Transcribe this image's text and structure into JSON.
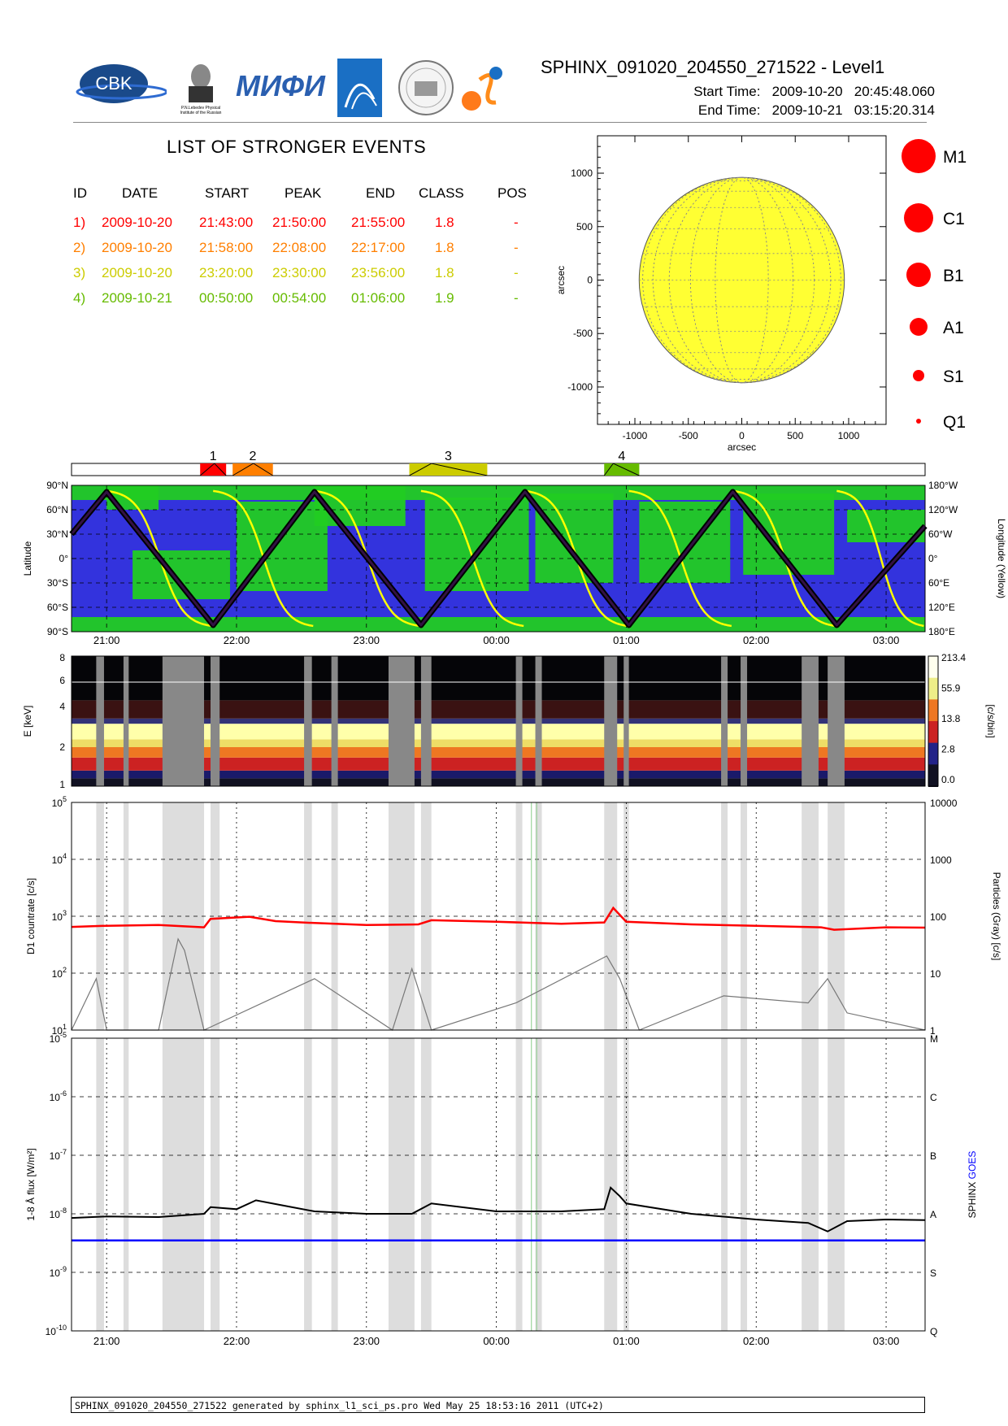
{
  "header": {
    "title": "SPHINX_091020_204550_271522 - Level1",
    "start_label": "Start Time:",
    "start_value": "2009-10-20   20:45:48.060",
    "end_label": "End Time:",
    "end_value": "2009-10-21   03:15:20.314",
    "logos": [
      "CBK PAN logo",
      "P.N. Lebedev Physical Institute logo",
      "MIFI logo",
      "instrument logo",
      "institute seal logo",
      "sun logo"
    ],
    "logo_text": {
      "cbk": "CBK",
      "lebedev": "P.N.Lebedev Physical Institute of the Russian Academy of Science",
      "mifi": "МИФИ"
    }
  },
  "events": {
    "title": "LIST OF STRONGER EVENTS",
    "columns": [
      "ID",
      "DATE",
      "START",
      "PEAK",
      "END",
      "CLASS",
      "POS"
    ],
    "rows": [
      {
        "id": "1)",
        "date": "2009-10-20",
        "start": "21:43:00",
        "peak": "21:50:00",
        "end": "21:55:00",
        "class": "1.8",
        "pos": "-",
        "color": "#ff0000"
      },
      {
        "id": "2)",
        "date": "2009-10-20",
        "start": "21:58:00",
        "peak": "22:08:00",
        "end": "22:17:00",
        "class": "1.8",
        "pos": "-",
        "color": "#ff7f00"
      },
      {
        "id": "3)",
        "date": "2009-10-20",
        "start": "23:20:00",
        "peak": "23:30:00",
        "end": "23:56:00",
        "class": "1.8",
        "pos": "-",
        "color": "#cccc00"
      },
      {
        "id": "4)",
        "date": "2009-10-21",
        "start": "00:50:00",
        "peak": "00:54:00",
        "end": "01:06:00",
        "class": "1.9",
        "pos": "-",
        "color": "#66bb00"
      }
    ]
  },
  "chart_data": [
    {
      "type": "scatter",
      "title": "",
      "xlabel": "arcsec",
      "ylabel": "arcsec",
      "xlim": [
        -1350,
        1350
      ],
      "ylim": [
        -1350,
        1350
      ],
      "xticks": [
        "-1000",
        "-500",
        "0",
        "500",
        "1000"
      ],
      "yticks": [
        "1000",
        "500",
        "0",
        "-500",
        "-1000"
      ],
      "disk_radius_arcsec": 960,
      "disk_color": "#ffff33",
      "legend": [
        "M1",
        "C1",
        "B1",
        "A1",
        "S1",
        "Q1"
      ],
      "points": []
    },
    {
      "type": "bar",
      "title": "",
      "xrange_hours": [
        20.73,
        27.3
      ],
      "events": [
        {
          "label": "1",
          "start": 21.72,
          "peak": 21.83,
          "end": 21.92,
          "color": "#ff0000"
        },
        {
          "label": "2",
          "start": 21.97,
          "peak": 22.13,
          "end": 22.28,
          "color": "#ff7f00"
        },
        {
          "label": "3",
          "start": 23.33,
          "peak": 23.5,
          "end": 23.93,
          "color": "#cccc00"
        },
        {
          "label": "4",
          "start": 24.83,
          "peak": 24.9,
          "end": 25.1,
          "color": "#66bb00"
        }
      ]
    },
    {
      "type": "line",
      "title": "",
      "ylabel": "Latitude",
      "ylabel_right": "Longitude (Yellow)",
      "yticks_left": [
        "90°N",
        "60°N",
        "30°N",
        "0°",
        "30°S",
        "60°S",
        "90°S"
      ],
      "yticks_right": [
        "180°W",
        "120°W",
        "60°W",
        "0°",
        "60°E",
        "120°E",
        "180°E"
      ],
      "xticks": [
        "21:00",
        "22:00",
        "23:00",
        "00:00",
        "01:00",
        "02:00",
        "03:00"
      ],
      "background_color": "#3333dd",
      "region_color": "#22cc22",
      "latitude_series": {
        "name": "",
        "x": [
          20.73,
          21.0,
          21.82,
          22.6,
          23.42,
          24.22,
          25.02,
          25.82,
          26.62,
          27.3
        ],
        "y": [
          30,
          82,
          -82,
          82,
          -82,
          82,
          -82,
          82,
          -82,
          40
        ]
      },
      "longitude_series": {
        "name": "",
        "color": "#ffff00",
        "crossings_hours": [
          21.0,
          21.82,
          22.6,
          23.42,
          24.22,
          25.02,
          25.82,
          26.62
        ]
      }
    },
    {
      "type": "heatmap",
      "title": "",
      "ylabel": "E [keV]",
      "ylabel_right": "[c/s/bin]",
      "yticks": [
        "8",
        "6",
        "4",
        "2",
        "1"
      ],
      "colorbar_ticks": [
        "213.4",
        "55.9",
        "13.8",
        "2.8",
        "0.0"
      ],
      "gaps_hours": [
        [
          20.92,
          20.98
        ],
        [
          21.13,
          21.17
        ],
        [
          21.43,
          21.75
        ],
        [
          21.8,
          21.87
        ],
        [
          22.52,
          22.58
        ],
        [
          22.73,
          22.78
        ],
        [
          23.17,
          23.37
        ],
        [
          23.42,
          23.5
        ],
        [
          24.15,
          24.2
        ],
        [
          24.3,
          24.35
        ],
        [
          24.83,
          24.93
        ],
        [
          24.98,
          25.02
        ],
        [
          25.73,
          25.78
        ],
        [
          25.88,
          25.93
        ],
        [
          26.35,
          26.48
        ],
        [
          26.55,
          26.68
        ]
      ]
    },
    {
      "type": "line",
      "title": "",
      "ylabel": "D1 countrate [c/s]",
      "ylabel_right": "Particles (Gray) [c/s]",
      "yscale": "log",
      "ylim": [
        10,
        100000
      ],
      "ylim_right": [
        1,
        10000
      ],
      "yticks_left": [
        "10^5",
        "10^4",
        "10^3",
        "10^2",
        "10^1"
      ],
      "yticks_right": [
        "10000",
        "1000",
        "100",
        "10",
        "1"
      ],
      "series": [
        {
          "name": "",
          "color": "#ff0000",
          "x": [
            20.73,
            21.0,
            21.4,
            21.75,
            21.8,
            22.1,
            22.3,
            22.6,
            23.0,
            23.4,
            23.5,
            24.0,
            24.5,
            24.83,
            24.9,
            25.0,
            25.5,
            26.0,
            26.5,
            26.6,
            27.0,
            27.3
          ],
          "y": [
            650,
            680,
            700,
            640,
            900,
            980,
            820,
            760,
            700,
            720,
            850,
            800,
            740,
            780,
            1400,
            800,
            720,
            680,
            640,
            580,
            640,
            630
          ]
        },
        {
          "name": "",
          "color": "#777777",
          "x": [
            20.73,
            20.92,
            21.0,
            21.4,
            21.55,
            21.6,
            21.75,
            22.6,
            23.2,
            23.35,
            23.5,
            24.15,
            24.85,
            24.95,
            25.1,
            25.75,
            26.4,
            26.55,
            26.7,
            27.3
          ],
          "y": [
            1,
            8,
            1,
            1,
            40,
            25,
            1,
            8,
            1,
            12,
            1,
            3,
            20,
            8,
            1,
            4,
            3,
            8,
            2,
            1
          ]
        }
      ]
    },
    {
      "type": "line",
      "title": "",
      "ylabel": "1-8 Å flux [W/m²]",
      "ylabel_right": "SPHINX GOES",
      "yscale": "log",
      "ylim": [
        1e-10,
        1e-05
      ],
      "yticks_left": [
        "10^-5",
        "10^-6",
        "10^-7",
        "10^-8",
        "10^-9",
        "10^-10"
      ],
      "yticks_right": [
        "M",
        "C",
        "B",
        "A",
        "S",
        "Q"
      ],
      "series": [
        {
          "name": "SPHINX",
          "color": "#000000",
          "x": [
            20.73,
            21.0,
            21.4,
            21.75,
            21.8,
            22.0,
            22.15,
            22.35,
            22.6,
            23.0,
            23.35,
            23.5,
            24.0,
            24.5,
            24.83,
            24.88,
            24.95,
            25.0,
            25.5,
            26.0,
            26.4,
            26.55,
            26.7,
            27.0,
            27.3
          ],
          "y": [
            8.5e-09,
            9e-09,
            8.8e-09,
            1e-08,
            1.3e-08,
            1.2e-08,
            1.7e-08,
            1.4e-08,
            1.1e-08,
            1e-08,
            1e-08,
            1.5e-08,
            1.1e-08,
            1.1e-08,
            1.2e-08,
            2.8e-08,
            2e-08,
            1.5e-08,
            1e-08,
            8e-09,
            7e-09,
            5e-09,
            7.5e-09,
            8e-09,
            7.8e-09
          ]
        },
        {
          "name": "GOES",
          "color": "#0000ff",
          "x": [
            20.73,
            27.3
          ],
          "y": [
            3.5e-09,
            3.5e-09
          ]
        }
      ],
      "xticks": [
        "21:00",
        "22:00",
        "23:00",
        "00:00",
        "01:00",
        "02:00",
        "03:00"
      ]
    }
  ],
  "footer": {
    "text": "SPHINX_091020_204550_271522 generated by sphinx_l1_sci_ps.pro Wed May 25 18:53:16 2011 (UTC+2)"
  },
  "legend_labels": [
    "M1",
    "C1",
    "B1",
    "A1",
    "S1",
    "Q1"
  ]
}
